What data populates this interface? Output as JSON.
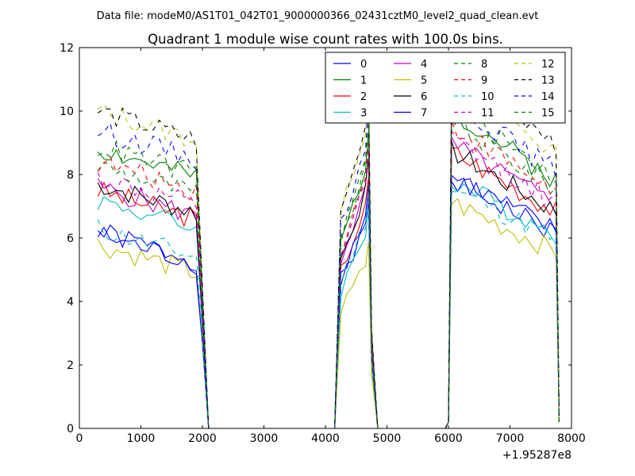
{
  "figure": {
    "suptitle": "Data file: modeM0/AS1T01_042T01_9000000366_02431cztM0_level2_quad_clean.evt"
  },
  "chart_data": {
    "type": "line",
    "title": "Quadrant 1 module wise count rates with 100.0s bins.",
    "xlabel": "",
    "ylabel": "",
    "x_offset_label": "+1.95287e8",
    "xlim": [
      0,
      8000
    ],
    "ylim": [
      0,
      12
    ],
    "x_ticks": [
      0,
      1000,
      2000,
      3000,
      4000,
      5000,
      6000,
      7000,
      8000
    ],
    "y_ticks": [
      0,
      2,
      4,
      6,
      8,
      10,
      12
    ],
    "x_tick_labels": [
      "0",
      "1000",
      "2000",
      "3000",
      "4000",
      "5000",
      "6000",
      "7000",
      "8000"
    ],
    "y_tick_labels": [
      "0",
      "2",
      "4",
      "6",
      "8",
      "10",
      "12"
    ],
    "grid": false,
    "legend_position": "top-right",
    "legend_columns": 4,
    "segments": [
      {
        "x_start": 300,
        "x_end": 1900
      },
      {
        "x_start": 4250,
        "x_end": 4650
      },
      {
        "x_start": 6050,
        "x_end": 7750
      }
    ],
    "zero_regions": [
      [
        2100,
        4150
      ],
      [
        4850,
        5950
      ]
    ],
    "series": [
      {
        "name": "0",
        "color": "#0000ff",
        "dash": false,
        "levels": [
          6.2,
          6.0,
          6.8
        ]
      },
      {
        "name": "1",
        "color": "#008000",
        "dash": false,
        "levels": [
          8.8,
          7.8,
          8.7
        ]
      },
      {
        "name": "2",
        "color": "#ff0000",
        "dash": false,
        "levels": [
          7.5,
          6.6,
          7.6
        ]
      },
      {
        "name": "3",
        "color": "#00bfbf",
        "dash": false,
        "levels": [
          7.2,
          5.8,
          6.8
        ]
      },
      {
        "name": "4",
        "color": "#bf00bf",
        "dash": false,
        "levels": [
          7.6,
          7.1,
          7.8
        ]
      },
      {
        "name": "5",
        "color": "#bfbf00",
        "dash": false,
        "levels": [
          5.8,
          4.9,
          6.2
        ]
      },
      {
        "name": "6",
        "color": "#000000",
        "dash": false,
        "levels": [
          7.7,
          7.1,
          7.6
        ]
      },
      {
        "name": "7",
        "color": "#0000ff",
        "dash": false,
        "levels": [
          6.1,
          6.4,
          6.9
        ]
      },
      {
        "name": "8",
        "color": "#008000",
        "dash": true,
        "levels": [
          8.3,
          7.8,
          8.4
        ]
      },
      {
        "name": "9",
        "color": "#ff0000",
        "dash": true,
        "levels": [
          8.4,
          7.5,
          8.3
        ]
      },
      {
        "name": "10",
        "color": "#00bfbf",
        "dash": true,
        "levels": [
          6.3,
          6.2,
          6.6
        ]
      },
      {
        "name": "11",
        "color": "#bf00bf",
        "dash": true,
        "levels": [
          7.9,
          7.3,
          7.9
        ]
      },
      {
        "name": "12",
        "color": "#bfbf00",
        "dash": true,
        "levels": [
          10.0,
          9.0,
          9.6
        ]
      },
      {
        "name": "13",
        "color": "#000000",
        "dash": true,
        "levels": [
          10.0,
          9.0,
          9.9
        ]
      },
      {
        "name": "14",
        "color": "#0000ff",
        "dash": true,
        "levels": [
          9.4,
          8.5,
          9.0
        ]
      },
      {
        "name": "15",
        "color": "#008000",
        "dash": true,
        "levels": [
          8.9,
          8.0,
          8.8
        ]
      }
    ]
  }
}
